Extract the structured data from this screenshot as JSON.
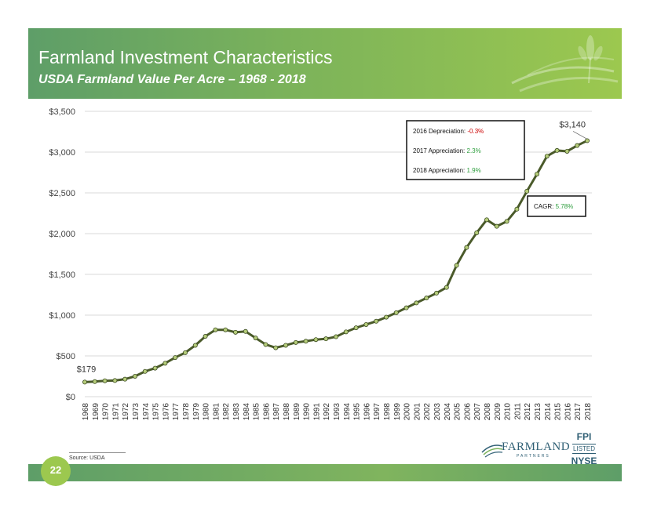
{
  "header": {
    "title": "Farmland Investment Characteristics",
    "subtitle": "USDA Farmland Value Per Acre – 1968 - 2018"
  },
  "colors": {
    "accent": "#7cb35a",
    "line": "#4a5a2a",
    "marker": "#b5cc7a"
  },
  "chart_data": {
    "type": "line",
    "title": "",
    "xlabel": "",
    "ylabel": "",
    "ylim": [
      0,
      3500
    ],
    "yticks": [
      "$0",
      "$500",
      "$1,000",
      "$1,500",
      "$2,000",
      "$2,500",
      "$3,000",
      "$3,500"
    ],
    "ytick_values": [
      0,
      500,
      1000,
      1500,
      2000,
      2500,
      3000,
      3500
    ],
    "grid": true,
    "x": [
      "1968",
      "1969",
      "1970",
      "1971",
      "1972",
      "1973",
      "1974",
      "1975",
      "1976",
      "1977",
      "1978",
      "1979",
      "1980",
      "1981",
      "1982",
      "1983",
      "1984",
      "1985",
      "1986",
      "1987",
      "1988",
      "1989",
      "1990",
      "1991",
      "1992",
      "1993",
      "1994",
      "1995",
      "1996",
      "1997",
      "1998",
      "1999",
      "2000",
      "2001",
      "2002",
      "2003",
      "2004",
      "2005",
      "2006",
      "2007",
      "2008",
      "2009",
      "2010",
      "2011",
      "2012",
      "2013",
      "2014",
      "2015",
      "2016",
      "2017",
      "2018"
    ],
    "series": [
      {
        "values": [
          179,
          185,
          195,
          198,
          215,
          250,
          310,
          350,
          410,
          480,
          540,
          630,
          740,
          820,
          820,
          790,
          800,
          720,
          640,
          600,
          630,
          665,
          680,
          700,
          710,
          735,
          795,
          845,
          885,
          925,
          975,
          1030,
          1090,
          1150,
          1210,
          1270,
          1340,
          1610,
          1830,
          2010,
          2170,
          2090,
          2150,
          2300,
          2520,
          2730,
          2950,
          3020,
          3010,
          3080,
          3140
        ]
      }
    ],
    "data_labels": {
      "first": "$179",
      "last": "$3,140"
    },
    "annotations": [
      {
        "text": "2016 Depreciation: ",
        "value": "-0.3%",
        "color": "#cc0000"
      },
      {
        "text": "2017 Appreciation: ",
        "value": "2.3%",
        "color": "#2e9e3e"
      },
      {
        "text": "2018 Appreciation: ",
        "value": "1.9%",
        "color": "#2e9e3e"
      }
    ],
    "cagr": {
      "text": "CAGR: ",
      "value": "5.78%",
      "color": "#2e9e3e"
    }
  },
  "footer": {
    "source": "Source: USDA",
    "page": "22",
    "logo_name": "FARMLAND",
    "logo_sub": "PARTNERS",
    "ticker_top": "FPI",
    "ticker_mid": "LISTED",
    "ticker_bottom": "NYSE"
  }
}
